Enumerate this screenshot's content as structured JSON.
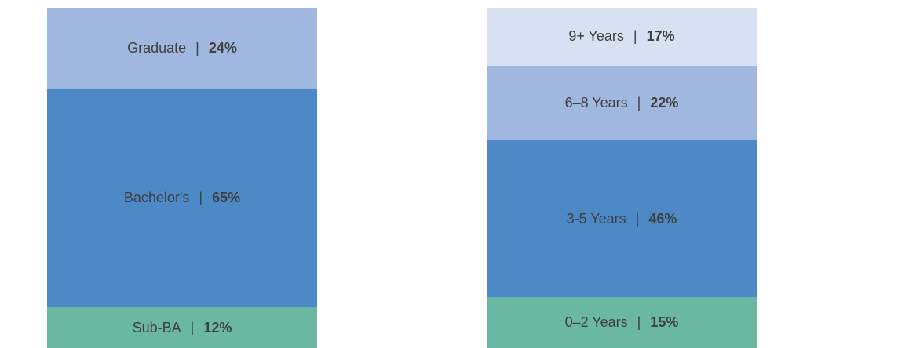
{
  "chart_data": [
    {
      "type": "bar",
      "stacked": true,
      "categories": [
        "Sub-BA",
        "Bachelor's",
        "Graduate"
      ],
      "values": [
        12,
        65,
        24
      ],
      "value_labels": [
        "12%",
        "65%",
        "24%"
      ],
      "colors": [
        "#6bb8a2",
        "#4d89c7",
        "#a0b7df"
      ],
      "title": "",
      "xlabel": "",
      "ylabel": ""
    },
    {
      "type": "bar",
      "stacked": true,
      "categories": [
        "0–2 Years",
        "3-5 Years",
        "6–8 Years",
        "9+ Years"
      ],
      "values": [
        15,
        46,
        22,
        17
      ],
      "value_labels": [
        "15%",
        "46%",
        "22%",
        "17%"
      ],
      "colors": [
        "#6bb8a2",
        "#4d89c7",
        "#a0b7df",
        "#d8e1f2"
      ],
      "title": "",
      "xlabel": "",
      "ylabel": ""
    }
  ],
  "separator": "|"
}
